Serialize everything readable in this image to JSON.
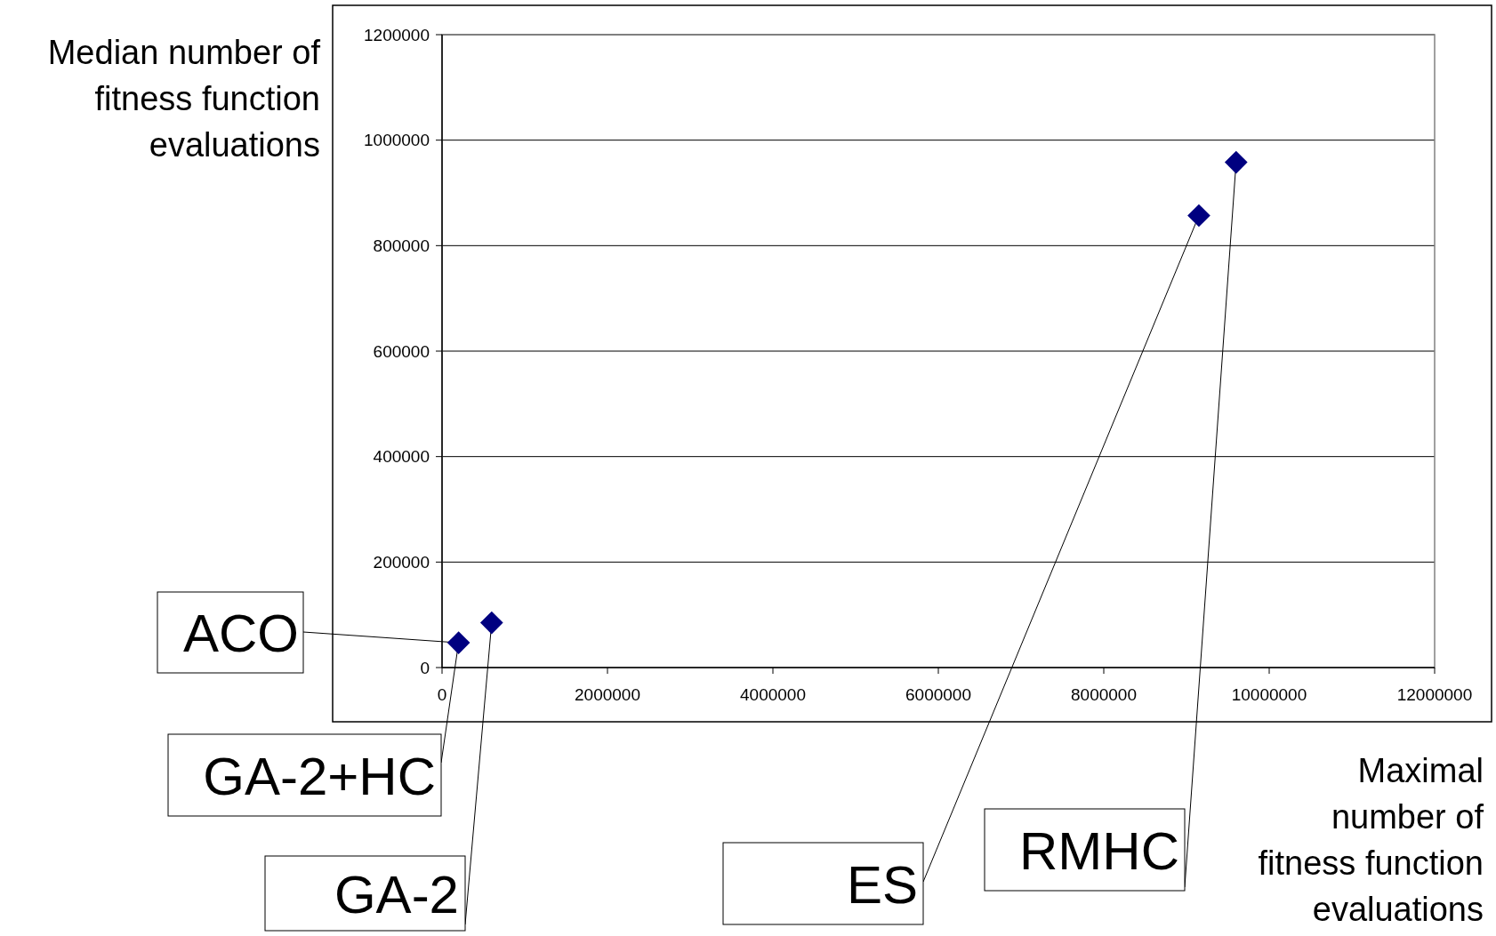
{
  "chart_data": {
    "type": "scatter",
    "xlabel": "Maximal number of fitness function evaluations",
    "ylabel": "Median number of fitness function evaluations",
    "x": [
      200000,
      600000,
      9150000,
      9600000
    ],
    "values": [
      47000,
      85000,
      857000,
      958000
    ],
    "color": "#000080",
    "marker": "diamond",
    "xlim": [
      0,
      12000000
    ],
    "xticks": [
      0,
      2000000,
      4000000,
      6000000,
      8000000,
      10000000,
      12000000
    ],
    "ylim": [
      0,
      1200000
    ],
    "yticks": [
      0,
      200000,
      400000,
      600000,
      800000,
      1000000,
      1200000
    ],
    "grid": "y",
    "annotations": [
      {
        "text": "ACO",
        "x": 200000,
        "y": 47000
      },
      {
        "text": "GA-2+HC",
        "x": 200000,
        "y": 47000
      },
      {
        "text": "GA-2",
        "x": 600000,
        "y": 85000
      },
      {
        "text": "ES",
        "x": 9150000,
        "y": 857000
      },
      {
        "text": "RMHC",
        "x": 9600000,
        "y": 958000
      }
    ]
  }
}
